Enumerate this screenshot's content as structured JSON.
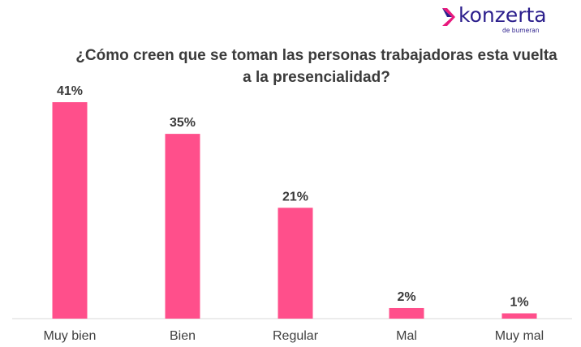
{
  "brand": {
    "name": "konzerta",
    "tagline": "de bumeran",
    "color": "#2b1e8c",
    "accent": "#e8197d"
  },
  "chart_data": {
    "type": "bar",
    "title": "¿Cómo creen que se toman las personas trabajadoras esta vuelta a la presencialidad?",
    "categories": [
      "Muy bien",
      "Bien",
      "Regular",
      "Mal",
      "Muy mal"
    ],
    "values": [
      41,
      35,
      21,
      2,
      1
    ],
    "value_labels": [
      "41%",
      "35%",
      "21%",
      "2%",
      "1%"
    ],
    "xlabel": "",
    "ylabel": "",
    "ylim": [
      0,
      45
    ],
    "bar_color": "#ff4f8b",
    "grid": false,
    "legend": "none"
  }
}
